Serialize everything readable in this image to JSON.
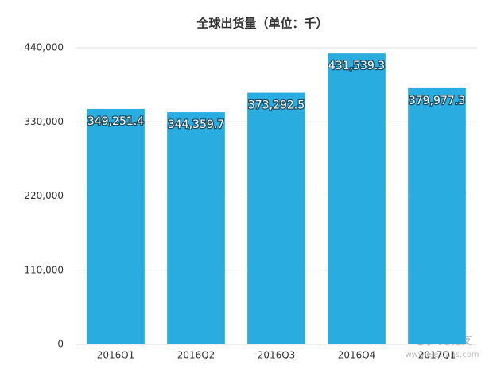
{
  "chart_data": {
    "type": "bar",
    "title": "全球出货量（单位：千）",
    "categories": [
      "2016Q1",
      "2016Q2",
      "2016Q3",
      "2016Q4",
      "2017Q1"
    ],
    "values": [
      349251.4,
      344359.7,
      373292.5,
      431539.3,
      379977.3
    ],
    "value_labels": [
      "349,251.4",
      "344,359.7",
      "373,292.5",
      "431,539.3",
      "379,977.3"
    ],
    "color": "#29acdf",
    "ylim": [
      0,
      440000
    ],
    "yticks": [
      0,
      {
        "value": 110000,
        "label": "110,000"
      },
      {
        "value": 220000,
        "label": "220,000"
      },
      {
        "value": 330000,
        "label": "330,000"
      },
      {
        "value": 440000,
        "label": "440,000"
      }
    ],
    "grid": true
  },
  "watermark": {
    "name": "电子发烧友",
    "url": "www.elecfans.com"
  }
}
